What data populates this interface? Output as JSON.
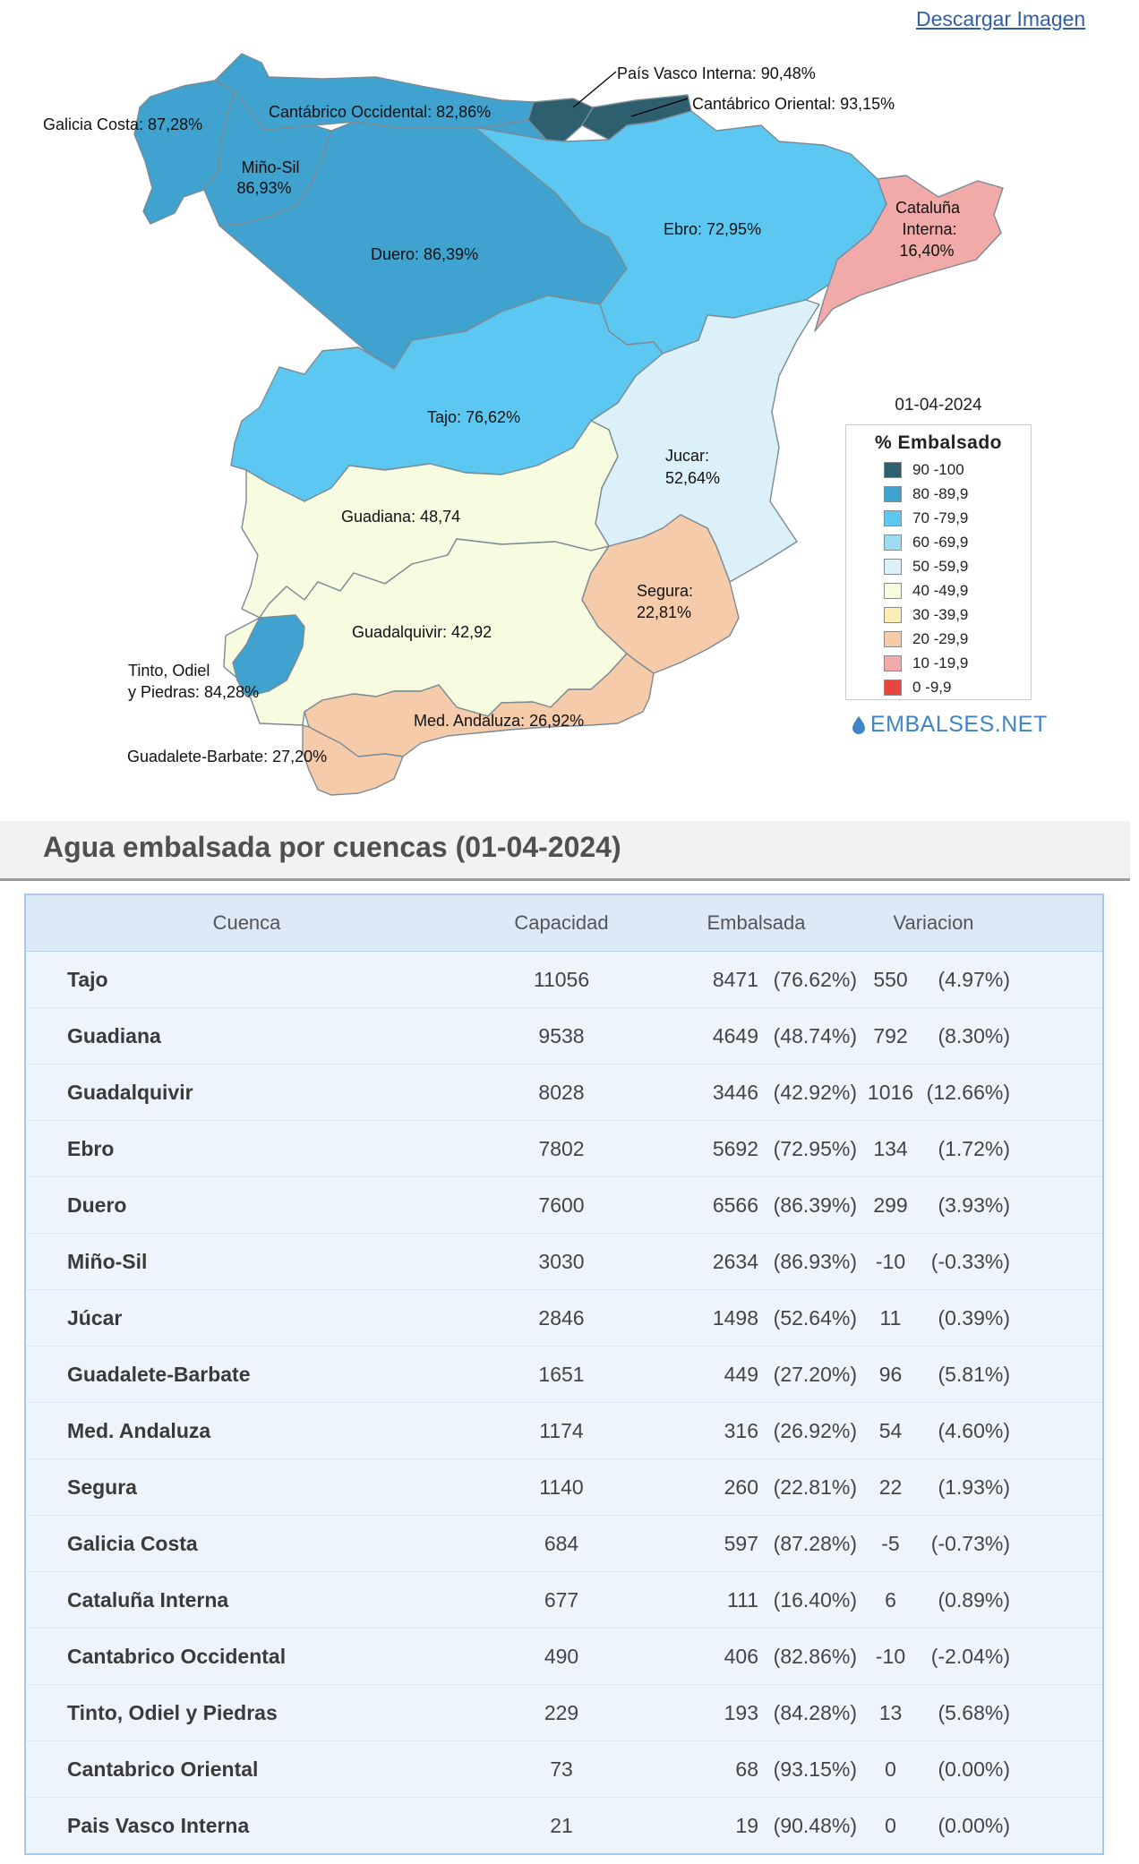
{
  "download_link": "Descargar Imagen",
  "map": {
    "date": "01-04-2024",
    "legend_title": "% Embalsado",
    "legend": [
      {
        "label": "90 -100",
        "color": "#2e5f6f"
      },
      {
        "label": "80 -89,9",
        "color": "#3fa2cf"
      },
      {
        "label": "70 -79,9",
        "color": "#5cc8f2"
      },
      {
        "label": "60 -69,9",
        "color": "#9fdcf4"
      },
      {
        "label": "50 -59,9",
        "color": "#dcf0fa"
      },
      {
        "label": "40 -49,9",
        "color": "#f7fbe0"
      },
      {
        "label": "30 -39,9",
        "color": "#f8efb4"
      },
      {
        "label": "20 -29,9",
        "color": "#f5cbaa"
      },
      {
        "label": "10 -19,9",
        "color": "#f2aaa9"
      },
      {
        "label": "0 -9,9",
        "color": "#e8463c"
      }
    ],
    "brand": "EMBALSES.NET",
    "regions": {
      "galicia_costa": {
        "label": "Galicia Costa: 87,28%",
        "color": "#3fa2cf"
      },
      "cantabrico_occidental": {
        "label": "Cantábrico Occidental: 82,86%",
        "color": "#3fa2cf"
      },
      "pais_vasco": {
        "label": "País Vasco Interna: 90,48%",
        "color": "#2e5f6f"
      },
      "cantabrico_oriental": {
        "label": "Cantábrico Oriental: 93,15%",
        "color": "#2e5f6f"
      },
      "mino_sil": {
        "label1": "Miño-Sil",
        "label2": "86,93%",
        "color": "#3fa2cf"
      },
      "duero": {
        "label": "Duero: 86,39%",
        "color": "#3fa2cf"
      },
      "ebro": {
        "label": "Ebro: 72,95%",
        "color": "#5cc8f2"
      },
      "cataluna": {
        "label1": "Cataluña",
        "label2": "Interna:",
        "label3": "16,40%",
        "color": "#f2aaa9"
      },
      "tajo": {
        "label": "Tajo: 76,62%",
        "color": "#5cc8f2"
      },
      "jucar": {
        "label1": "Jucar:",
        "label2": "52,64%",
        "color": "#dcf0fa"
      },
      "guadiana": {
        "label": "Guadiana: 48,74",
        "color": "#f7fbe0"
      },
      "segura": {
        "label1": "Segura:",
        "label2": "22,81%",
        "color": "#f5cbaa"
      },
      "guadalquivir": {
        "label": "Guadalquivir: 42,92",
        "color": "#f7fbe0"
      },
      "tinto": {
        "label1": "Tinto, Odiel",
        "label2": "y Piedras: 84,28%",
        "color": "#3fa2cf"
      },
      "med_andaluza": {
        "label": "Med. Andaluza: 26,92%",
        "color": "#f5cbaa"
      },
      "guadalete": {
        "label": "Guadalete-Barbate: 27,20%",
        "color": "#f5cbaa"
      }
    }
  },
  "section_title": "Agua embalsada por cuencas (01-04-2024)",
  "table": {
    "headers": {
      "cuenca": "Cuenca",
      "capacidad": "Capacidad",
      "embalsada": "Embalsada",
      "variacion": "Variacion"
    },
    "rows": [
      {
        "name": "Tajo",
        "cap": "11056",
        "emb": "8471",
        "emb_pct": "(76.62%)",
        "var": "550",
        "var_pct": "(4.97%)"
      },
      {
        "name": "Guadiana",
        "cap": "9538",
        "emb": "4649",
        "emb_pct": "(48.74%)",
        "var": "792",
        "var_pct": "(8.30%)"
      },
      {
        "name": "Guadalquivir",
        "cap": "8028",
        "emb": "3446",
        "emb_pct": "(42.92%)",
        "var": "1016",
        "var_pct": "(12.66%)"
      },
      {
        "name": "Ebro",
        "cap": "7802",
        "emb": "5692",
        "emb_pct": "(72.95%)",
        "var": "134",
        "var_pct": "(1.72%)"
      },
      {
        "name": "Duero",
        "cap": "7600",
        "emb": "6566",
        "emb_pct": "(86.39%)",
        "var": "299",
        "var_pct": "(3.93%)"
      },
      {
        "name": "Miño-Sil",
        "cap": "3030",
        "emb": "2634",
        "emb_pct": "(86.93%)",
        "var": "-10",
        "var_pct": "(-0.33%)"
      },
      {
        "name": "Júcar",
        "cap": "2846",
        "emb": "1498",
        "emb_pct": "(52.64%)",
        "var": "11",
        "var_pct": "(0.39%)"
      },
      {
        "name": "Guadalete-Barbate",
        "cap": "1651",
        "emb": "449",
        "emb_pct": "(27.20%)",
        "var": "96",
        "var_pct": "(5.81%)"
      },
      {
        "name": "Med. Andaluza",
        "cap": "1174",
        "emb": "316",
        "emb_pct": "(26.92%)",
        "var": "54",
        "var_pct": "(4.60%)"
      },
      {
        "name": "Segura",
        "cap": "1140",
        "emb": "260",
        "emb_pct": "(22.81%)",
        "var": "22",
        "var_pct": "(1.93%)"
      },
      {
        "name": "Galicia Costa",
        "cap": "684",
        "emb": "597",
        "emb_pct": "(87.28%)",
        "var": "-5",
        "var_pct": "(-0.73%)"
      },
      {
        "name": "Cataluña Interna",
        "cap": "677",
        "emb": "111",
        "emb_pct": "(16.40%)",
        "var": "6",
        "var_pct": "(0.89%)"
      },
      {
        "name": "Cantabrico Occidental",
        "cap": "490",
        "emb": "406",
        "emb_pct": "(82.86%)",
        "var": "-10",
        "var_pct": "(-2.04%)"
      },
      {
        "name": "Tinto, Odiel y Piedras",
        "cap": "229",
        "emb": "193",
        "emb_pct": "(84.28%)",
        "var": "13",
        "var_pct": "(5.68%)"
      },
      {
        "name": "Cantabrico Oriental",
        "cap": "73",
        "emb": "68",
        "emb_pct": "(93.15%)",
        "var": "0",
        "var_pct": "(0.00%)"
      },
      {
        "name": "Pais Vasco Interna",
        "cap": "21",
        "emb": "19",
        "emb_pct": "(90.48%)",
        "var": "0",
        "var_pct": "(0.00%)"
      }
    ]
  }
}
